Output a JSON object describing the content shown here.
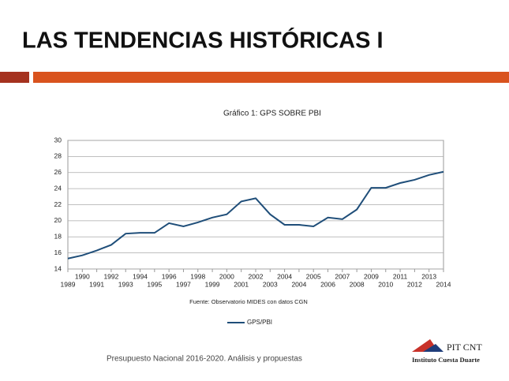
{
  "slide": {
    "title": "LAS TENDENCIAS HISTÓRICAS I",
    "footer": "Presupuesto Nacional  2016-2020. Análisis y propuestas",
    "logo": {
      "name": "PIT CNT",
      "subtitle": "Instituto Cuesta Duarte"
    }
  },
  "chart_data": {
    "type": "line",
    "title": "Gráfico 1: GPS SOBRE PBI",
    "source": "Fuente: Observatorio MIDES con datos CGN",
    "categories": [
      "1989",
      "1990",
      "1991",
      "1992",
      "1993",
      "1994",
      "1995",
      "1996",
      "1997",
      "1998",
      "1999",
      "2000",
      "2001",
      "2002",
      "2003",
      "2004",
      "2004",
      "2005",
      "2006",
      "2007",
      "2008",
      "2009",
      "2010",
      "2011",
      "2012",
      "2013",
      "2014"
    ],
    "series": [
      {
        "name": "GPS/PBI",
        "color": "#1f4e79",
        "values": [
          15.3,
          15.7,
          16.3,
          17.0,
          18.4,
          18.5,
          18.5,
          19.7,
          19.3,
          19.8,
          20.4,
          20.8,
          22.4,
          22.8,
          20.8,
          19.5,
          19.5,
          19.3,
          20.4,
          20.2,
          21.4,
          24.1,
          24.1,
          24.7,
          25.1,
          25.7,
          26.1
        ]
      }
    ],
    "ylim": [
      14,
      30
    ],
    "yticks": [
      14,
      16,
      18,
      20,
      22,
      24,
      26,
      28,
      30
    ],
    "grid": true,
    "legend": "bottom"
  }
}
